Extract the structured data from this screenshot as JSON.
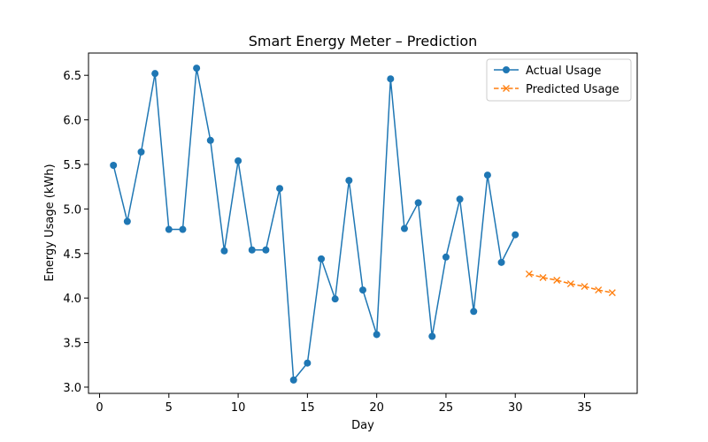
{
  "chart_data": {
    "type": "line",
    "title": "Smart Energy Meter – Prediction",
    "xlabel": "Day",
    "ylabel": "Energy Usage (kWh)",
    "xlim": [
      -0.8,
      38.8
    ],
    "ylim": [
      2.93,
      6.75
    ],
    "xticks": [
      0,
      5,
      10,
      15,
      20,
      25,
      30,
      35
    ],
    "yticks": [
      3.0,
      3.5,
      4.0,
      4.5,
      5.0,
      5.5,
      6.0,
      6.5
    ],
    "legend_position": "top-right",
    "series": [
      {
        "name": "Actual Usage",
        "color": "#1f77b4",
        "marker": "circle",
        "linestyle": "solid",
        "x": [
          1,
          2,
          3,
          4,
          5,
          6,
          7,
          8,
          9,
          10,
          11,
          12,
          13,
          14,
          15,
          16,
          17,
          18,
          19,
          20,
          21,
          22,
          23,
          24,
          25,
          26,
          27,
          28,
          29,
          30
        ],
        "y": [
          5.49,
          4.86,
          5.64,
          6.52,
          4.77,
          4.77,
          6.58,
          5.77,
          4.53,
          5.54,
          4.54,
          4.54,
          5.23,
          3.08,
          3.27,
          4.44,
          3.99,
          5.32,
          4.09,
          3.59,
          6.46,
          4.78,
          5.07,
          3.57,
          4.46,
          5.11,
          3.85,
          5.38,
          4.4,
          4.71
        ]
      },
      {
        "name": "Predicted Usage",
        "color": "#ff7f0e",
        "marker": "x",
        "linestyle": "dashed",
        "x": [
          31,
          32,
          33,
          34,
          35,
          36,
          37
        ],
        "y": [
          4.27,
          4.23,
          4.2,
          4.16,
          4.13,
          4.09,
          4.06
        ]
      }
    ]
  }
}
